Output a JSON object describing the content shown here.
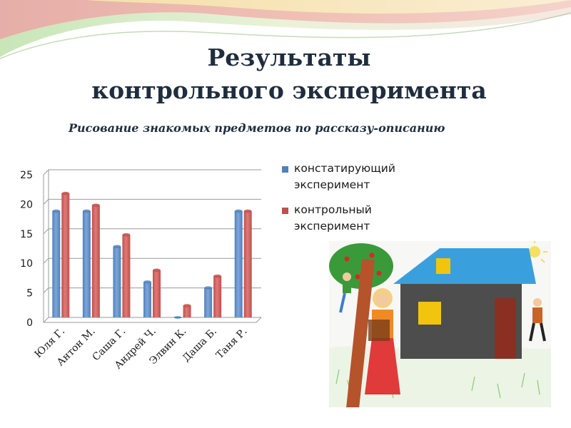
{
  "slide": {
    "title_line1": "Результаты",
    "title_line2": "контрольного эксперимента",
    "subtitle": "Рисование знакомых предметов по рассказу-описанию"
  },
  "colors": {
    "series1": "#4f81bd",
    "series2": "#c0504d",
    "title": "#1f2d3d"
  },
  "chart_data": {
    "type": "bar",
    "categories": [
      "Юля Г.",
      "Антон М.",
      "Саша Г.",
      "Андрей Ч.",
      "Элвин К.",
      "Даша Б.",
      "Таня Р."
    ],
    "series": [
      {
        "name": "констатирующий эксперимент",
        "values": [
          18,
          18,
          12,
          6,
          0,
          5,
          18
        ]
      },
      {
        "name": "контрольный эксперимент",
        "values": [
          21,
          19,
          14,
          8,
          2,
          7,
          18
        ]
      }
    ],
    "ylim": [
      0,
      25
    ],
    "yticks": [
      "0",
      "5",
      "10",
      "15",
      "20",
      "25"
    ],
    "grid": true,
    "legend_position": "right",
    "bar_style": "3d-cylinder"
  },
  "legend": {
    "items": [
      {
        "line1": "констатирующий",
        "line2": "эксперимент"
      },
      {
        "line1": "контрольный",
        "line2": "эксперимент"
      }
    ]
  },
  "image": {
    "description_icon": "child-drawing-house-tree-people"
  }
}
